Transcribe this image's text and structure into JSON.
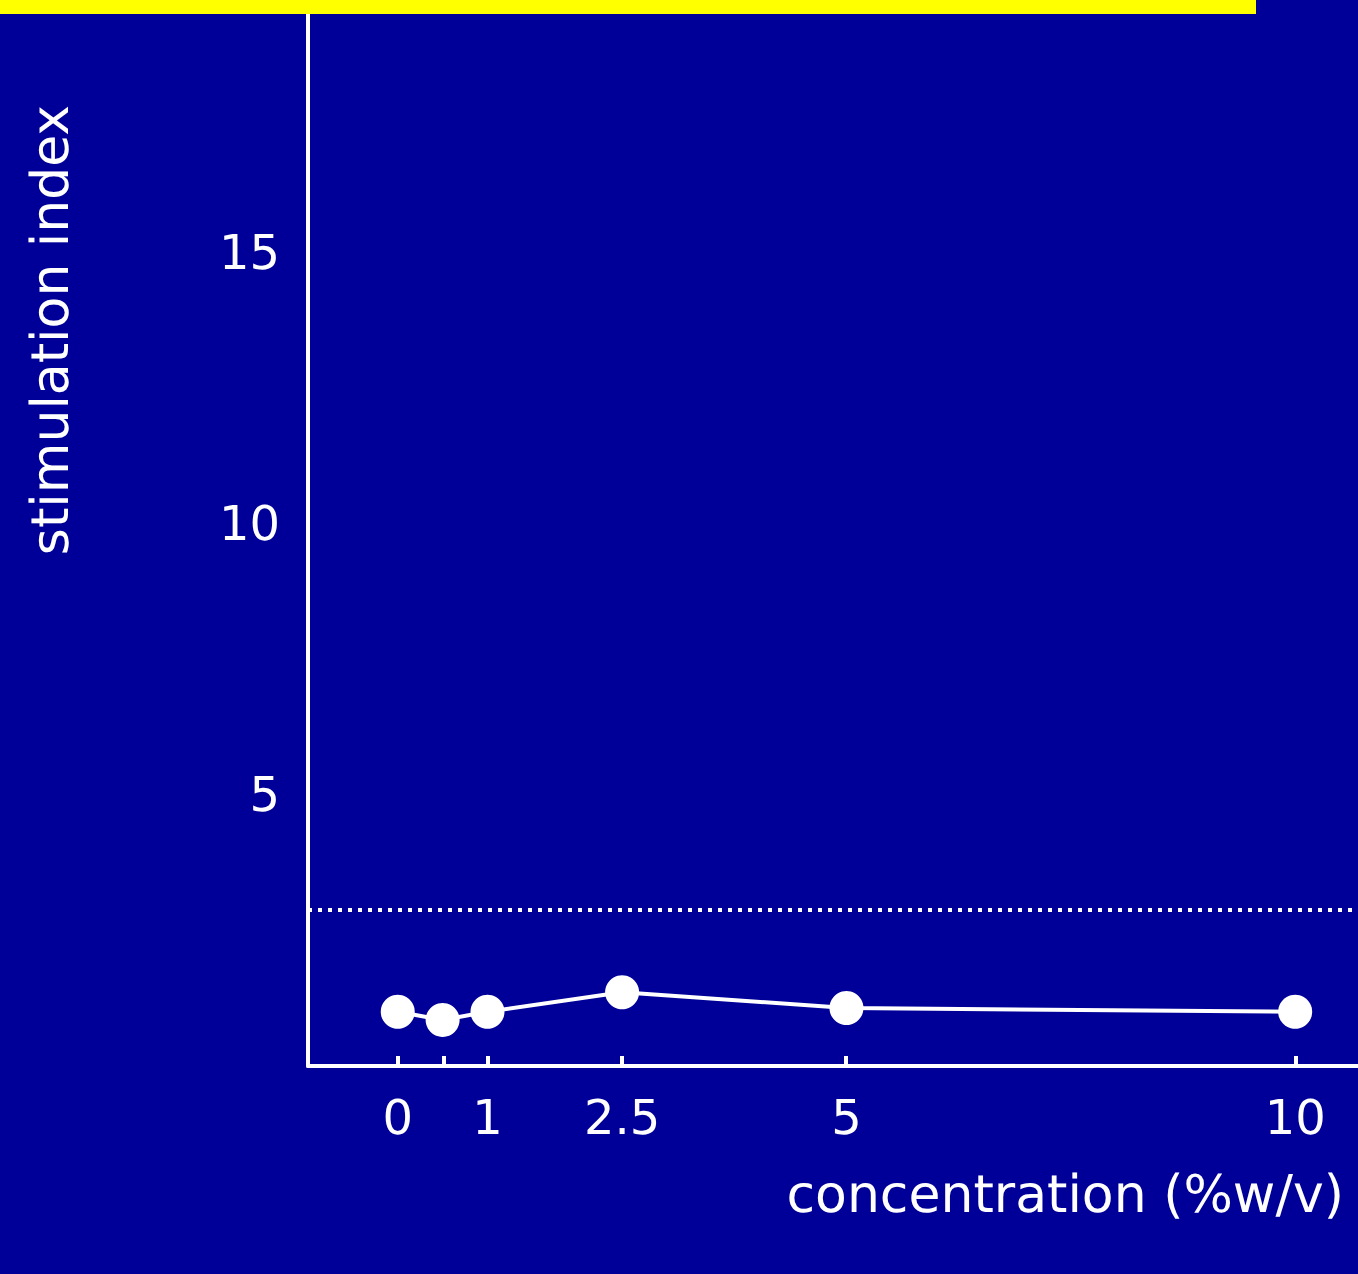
{
  "chart_data": {
    "type": "line",
    "xlabel": "concentration (%w/v)",
    "ylabel": "stimulation index",
    "x": [
      0,
      0.5,
      1,
      2.5,
      5,
      10
    ],
    "series": [
      {
        "color": "#ffffff",
        "values": [
          1.0,
          0.85,
          1.0,
          1.36,
          1.07,
          1.0
        ]
      }
    ],
    "xlim": [
      -1,
      10.7
    ],
    "xticks": [
      0,
      {
        "value": 0.5,
        "label": null
      },
      1,
      2.5,
      5,
      10
    ],
    "ylim": [
      0,
      19.4
    ],
    "yticks": [
      5,
      10,
      15
    ],
    "ref_lines": [
      {
        "axis": "y",
        "value": 2.9,
        "color": "#ffffff",
        "line_style": "dotted"
      }
    ],
    "marker": "circle"
  }
}
